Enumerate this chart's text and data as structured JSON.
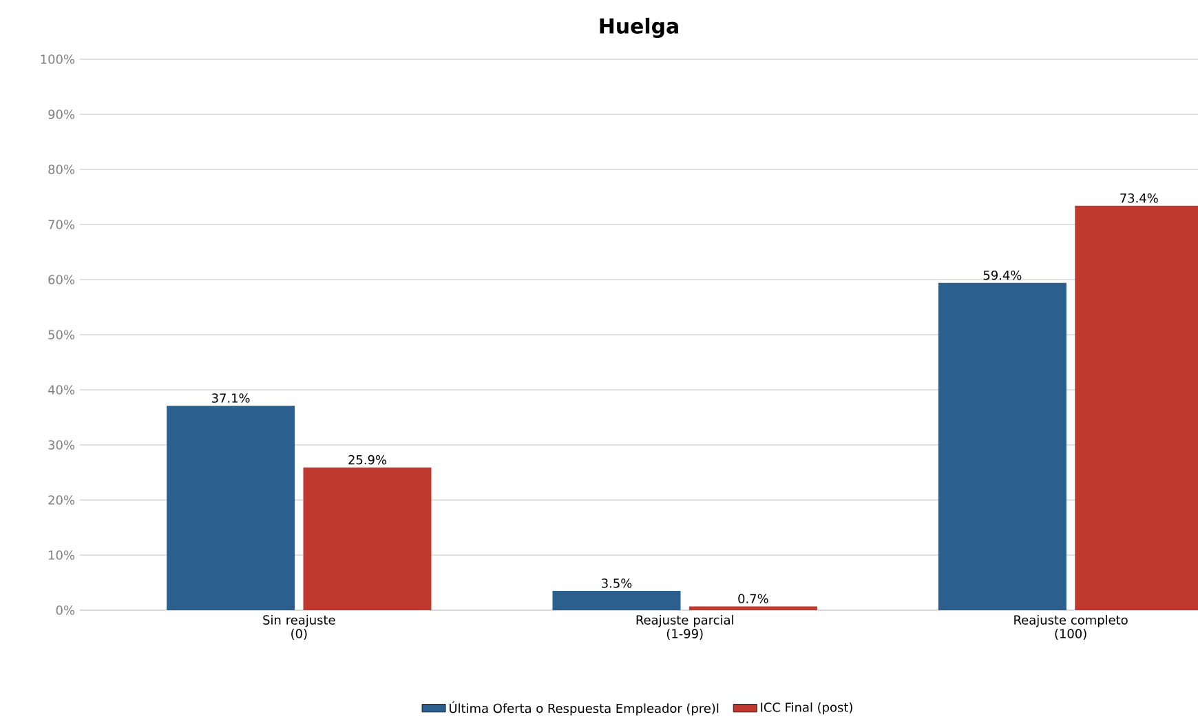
{
  "chart_data": {
    "type": "bar",
    "title": "Huelga",
    "categories": [
      "Sin reajuste\n(0)",
      "Reajuste parcial\n(1-99)",
      "Reajuste completo\n(100)"
    ],
    "series": [
      {
        "name": "Última Oferta o Respuesta Empleador (pre)l",
        "color": "#2b5f8e",
        "values": [
          37.1,
          3.5,
          59.4
        ],
        "value_labels": [
          "37.1%",
          "3.5%",
          "59.4%"
        ]
      },
      {
        "name": "ICC Final (post)",
        "color": "#c0392f",
        "values": [
          25.9,
          0.7,
          73.4
        ],
        "value_labels": [
          "25.9%",
          "0.7%",
          "73.4%"
        ]
      }
    ],
    "ylim": [
      0,
      100
    ],
    "yticks": [
      {
        "value": 0,
        "label": "0%"
      },
      {
        "value": 10,
        "label": "10%"
      },
      {
        "value": 20,
        "label": "20%"
      },
      {
        "value": 30,
        "label": "30%"
      },
      {
        "value": 40,
        "label": "40%"
      },
      {
        "value": 50,
        "label": "50%"
      },
      {
        "value": 60,
        "label": "60%"
      },
      {
        "value": 70,
        "label": "70%"
      },
      {
        "value": 80,
        "label": "80%"
      },
      {
        "value": 90,
        "label": "90%"
      },
      {
        "value": 100,
        "label": "100%"
      }
    ],
    "grid": "y",
    "legend": "bottom"
  }
}
